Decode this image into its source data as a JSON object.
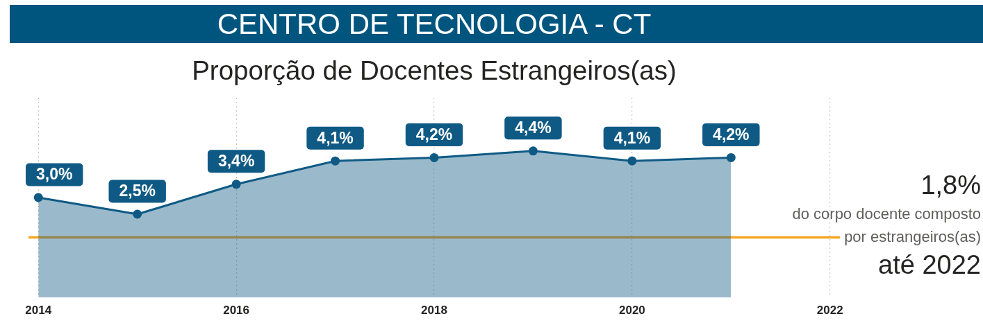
{
  "chart_data": {
    "type": "area",
    "title": "CENTRO DE TECNOLOGIA - CT",
    "subtitle": "Proporção de Docentes Estrangeiros(as)",
    "x": [
      2014,
      2015,
      2016,
      2017,
      2018,
      2019,
      2020,
      2021
    ],
    "series": [
      {
        "color": "#0f5a85",
        "values": [
          3.0,
          2.5,
          3.4,
          4.1,
          4.2,
          4.4,
          4.1,
          4.2
        ],
        "value_labels": [
          "3,0%",
          "2,5%",
          "3,4%",
          "4,1%",
          "4,2%",
          "4,4%",
          "4,1%",
          "4,2%"
        ]
      }
    ],
    "xlim": [
      2013.9,
      2022.1
    ],
    "xticks": [
      2014,
      2016,
      2018,
      2020,
      2022
    ],
    "ylim": [
      0,
      6
    ],
    "tick_labels": "x",
    "grid": "x",
    "legend": false,
    "marker": "circle",
    "line_style": "solid",
    "ref_lines": [
      {
        "axis": "y",
        "value": 1.8,
        "color": "#f5a623"
      }
    ],
    "annotations": [
      "1,8%",
      "do corpo docente composto por estrangeiros(as)",
      "até 2022"
    ]
  }
}
